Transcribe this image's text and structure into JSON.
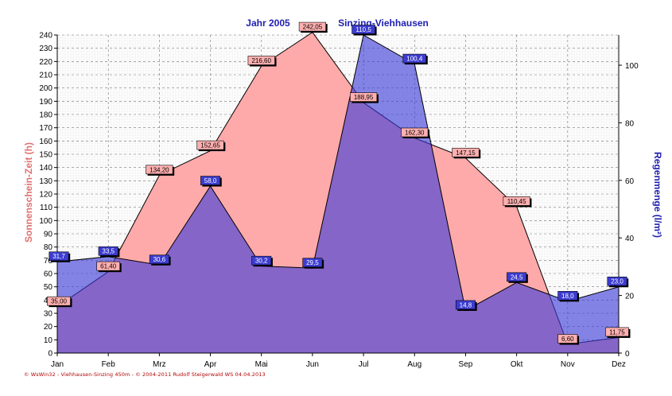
{
  "chart_data": {
    "type": "area",
    "title_left": "Jahr  2005",
    "title_right": "Sinzing-Viehhausen",
    "ylabel_left": "Sonnenschein-Zeit  (h)",
    "ylabel_right": "Regenmenge  (l/m²)",
    "categories": [
      "Jan",
      "Feb",
      "Mrz",
      "Apr",
      "Mai",
      "Jun",
      "Jul",
      "Aug",
      "Sep",
      "Okt",
      "Nov",
      "Dez"
    ],
    "ylim_left": [
      0,
      240
    ],
    "yticks_left": [
      0,
      10,
      20,
      30,
      40,
      50,
      60,
      70,
      80,
      90,
      100,
      110,
      120,
      130,
      140,
      150,
      160,
      170,
      180,
      190,
      200,
      210,
      220,
      230,
      240
    ],
    "ylim_right": [
      0,
      110.5
    ],
    "yticks_right": [
      0,
      20,
      40,
      60,
      80,
      100
    ],
    "grid": true,
    "series": [
      {
        "name": "Sonnenschein-Zeit",
        "axis": "left",
        "values": [
          35.0,
          61.4,
          134.2,
          152.65,
          216.6,
          242.05,
          188.95,
          162.3,
          147.15,
          110.45,
          6.6,
          11.75
        ],
        "labels": [
          "35,00",
          "61,40",
          "134,20",
          "152,65",
          "216,60",
          "242,05",
          "188,95",
          "162,30",
          "147,15",
          "110,45",
          "6,60",
          "11,75"
        ],
        "color": "#ff9e9e"
      },
      {
        "name": "Regenmenge",
        "axis": "right",
        "values": [
          31.7,
          33.5,
          30.6,
          58.0,
          30.2,
          29.5,
          110.5,
          100.4,
          14.8,
          24.5,
          18.0,
          23.0
        ],
        "labels": [
          "31,7",
          "33,5",
          "30,6",
          "58,0",
          "30,2",
          "29,5",
          "110,5",
          "100,4",
          "14,8",
          "24,5",
          "18,0",
          "23,0"
        ],
        "color": "#3030d0"
      }
    ]
  },
  "footer": "© WsWin32  -  Viehhausen-Sinzing 450m  -  © 2004-2011 Rudolf Steigerwald WS  04.04.2013"
}
